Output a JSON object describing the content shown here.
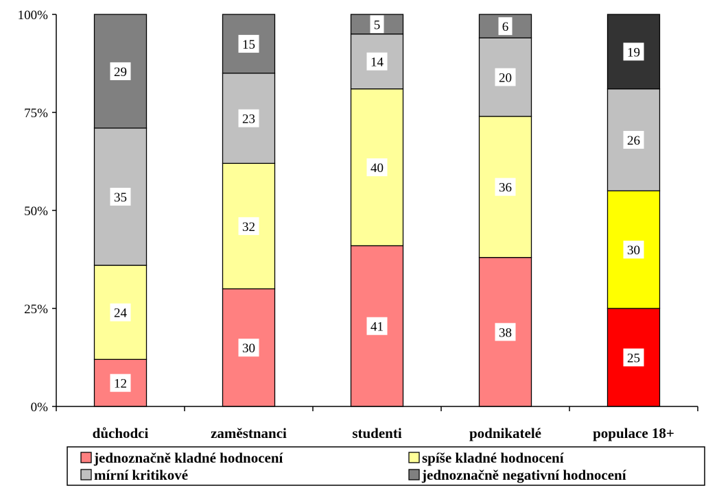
{
  "chart_data": {
    "type": "bar",
    "stacked": true,
    "categories": [
      "důchodci",
      "zaměstnanci",
      "studenti",
      "podnikatelé",
      "populace 18+"
    ],
    "series": [
      {
        "name": "jednoznačně kladné hodnocení",
        "values": [
          12,
          30,
          41,
          38,
          25
        ],
        "color": "#ff8080",
        "highlight_color": "#ff0000"
      },
      {
        "name": "spíše kladné hodnocení",
        "values": [
          24,
          32,
          40,
          36,
          30
        ],
        "color": "#ffff99",
        "highlight_color": "#ffff00"
      },
      {
        "name": "mírní kritikové",
        "values": [
          35,
          23,
          14,
          20,
          26
        ],
        "color": "#c0c0c0",
        "highlight_color": "#c0c0c0"
      },
      {
        "name": "jednoznačně negativní hodnocení",
        "values": [
          29,
          15,
          5,
          6,
          19
        ],
        "color": "#808080",
        "highlight_color": "#333333"
      }
    ],
    "highlight_category": "populace 18+",
    "y_ticks": [
      "0%",
      "25%",
      "50%",
      "75%",
      "100%"
    ],
    "ylim": [
      0,
      100
    ],
    "grid": false,
    "legend_position": "bottom"
  }
}
